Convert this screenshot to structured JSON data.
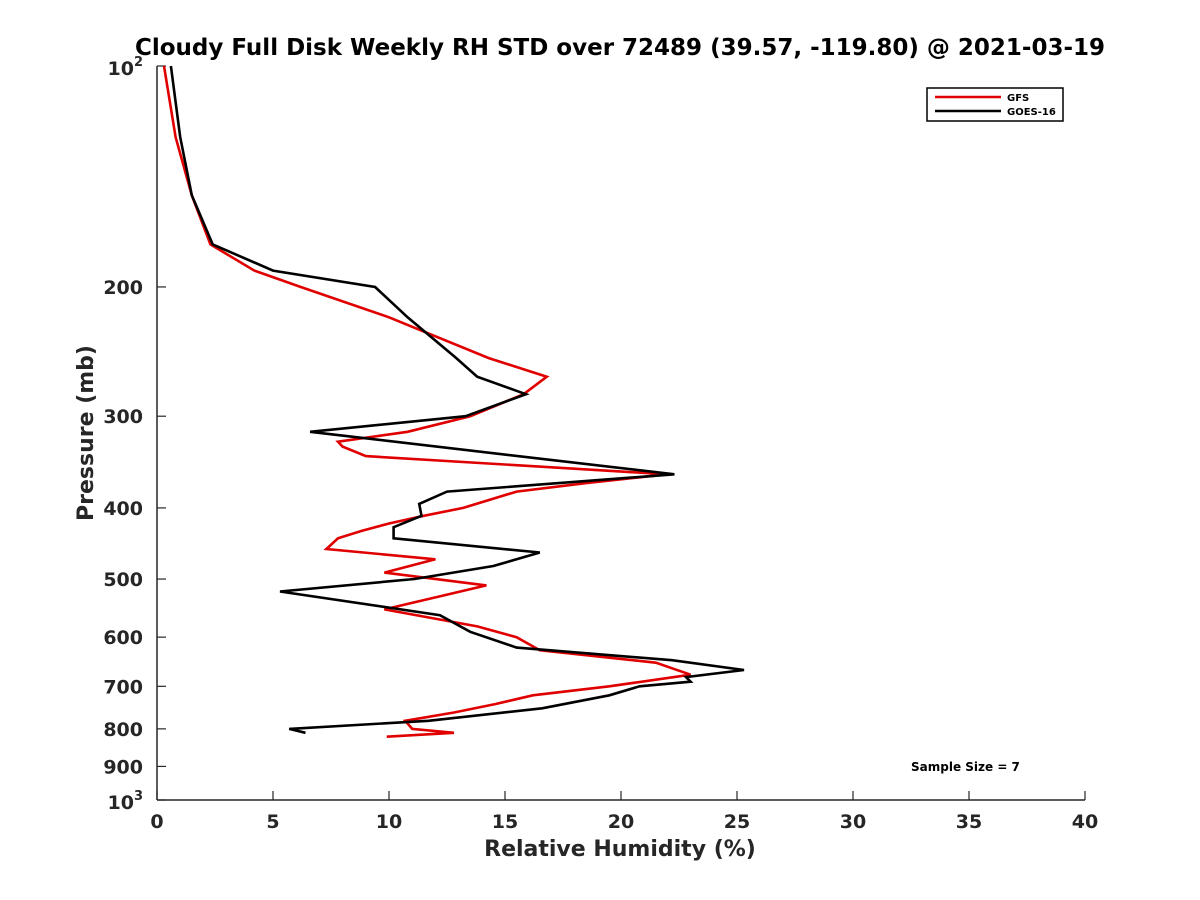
{
  "chart_data": {
    "type": "line",
    "title": "Cloudy Full Disk Weekly RH STD over 72489 (39.57, -119.80) @ 2021-03-19",
    "xlabel": "Relative Humidity (%)",
    "ylabel": "Pressure (mb)",
    "xlim": [
      0,
      40
    ],
    "ylim": [
      100,
      1000
    ],
    "yscale": "log",
    "y_reversed": true,
    "grid": false,
    "legend_position": "top-right",
    "x_ticks": [
      "0",
      "5",
      "10",
      "15",
      "20",
      "25",
      "30",
      "35",
      "40"
    ],
    "y_ticks": [
      {
        "value": 100,
        "base": "10",
        "exp": "2"
      },
      {
        "value": 200,
        "label": "200"
      },
      {
        "value": 300,
        "label": "300"
      },
      {
        "value": 400,
        "label": "400"
      },
      {
        "value": 500,
        "label": "500"
      },
      {
        "value": 600,
        "label": "600"
      },
      {
        "value": 700,
        "label": "700"
      },
      {
        "value": 800,
        "label": "800"
      },
      {
        "value": 900,
        "label": "900"
      },
      {
        "value": 1000,
        "base": "10",
        "exp": "3"
      }
    ],
    "annotation": "Sample Size = 7",
    "series": [
      {
        "name": "GFS",
        "color": "#e00000",
        "points": [
          [
            0.3,
            100
          ],
          [
            0.8,
            125
          ],
          [
            1.5,
            150
          ],
          [
            2.3,
            175
          ],
          [
            4.2,
            190
          ],
          [
            6.2,
            200
          ],
          [
            10,
            220
          ],
          [
            14.3,
            250
          ],
          [
            16.8,
            265
          ],
          [
            15.8,
            280
          ],
          [
            13.5,
            300
          ],
          [
            10.8,
            315
          ],
          [
            7.8,
            325
          ],
          [
            8.0,
            330
          ],
          [
            9.0,
            340
          ],
          [
            22.0,
            360
          ],
          [
            18.5,
            370
          ],
          [
            15.5,
            380
          ],
          [
            13.2,
            400
          ],
          [
            11.5,
            410
          ],
          [
            10.0,
            420
          ],
          [
            8.8,
            430
          ],
          [
            7.8,
            440
          ],
          [
            7.3,
            455
          ],
          [
            12.0,
            470
          ],
          [
            9.8,
            490
          ],
          [
            14.2,
            510
          ],
          [
            9.8,
            550
          ],
          [
            13.8,
            580
          ],
          [
            15.5,
            600
          ],
          [
            16.5,
            625
          ],
          [
            21.5,
            650
          ],
          [
            23.0,
            675
          ],
          [
            19.5,
            700
          ],
          [
            16.2,
            720
          ],
          [
            14.6,
            740
          ],
          [
            12.8,
            760
          ],
          [
            10.7,
            780
          ],
          [
            11.0,
            800
          ],
          [
            12.8,
            810
          ],
          [
            9.9,
            820
          ]
        ]
      },
      {
        "name": "GOES-16",
        "color": "#000000",
        "points": [
          [
            0.6,
            100
          ],
          [
            1.0,
            125
          ],
          [
            1.5,
            150
          ],
          [
            2.4,
            175
          ],
          [
            5.0,
            190
          ],
          [
            9.4,
            200
          ],
          [
            10.8,
            220
          ],
          [
            12.9,
            250
          ],
          [
            13.8,
            265
          ],
          [
            15.9,
            280
          ],
          [
            13.3,
            300
          ],
          [
            6.6,
            315
          ],
          [
            22.3,
            360
          ],
          [
            12.5,
            380
          ],
          [
            11.3,
            395
          ],
          [
            11.4,
            410
          ],
          [
            10.2,
            425
          ],
          [
            10.2,
            440
          ],
          [
            16.5,
            460
          ],
          [
            14.5,
            480
          ],
          [
            11.1,
            500
          ],
          [
            5.3,
            520
          ],
          [
            12.2,
            560
          ],
          [
            13.5,
            590
          ],
          [
            15.5,
            620
          ],
          [
            22.2,
            645
          ],
          [
            25.3,
            665
          ],
          [
            22.8,
            680
          ],
          [
            23.0,
            690
          ],
          [
            20.8,
            700
          ],
          [
            19.5,
            720
          ],
          [
            16.6,
            750
          ],
          [
            11.7,
            780
          ],
          [
            5.7,
            800
          ],
          [
            6.4,
            810
          ]
        ]
      }
    ]
  }
}
